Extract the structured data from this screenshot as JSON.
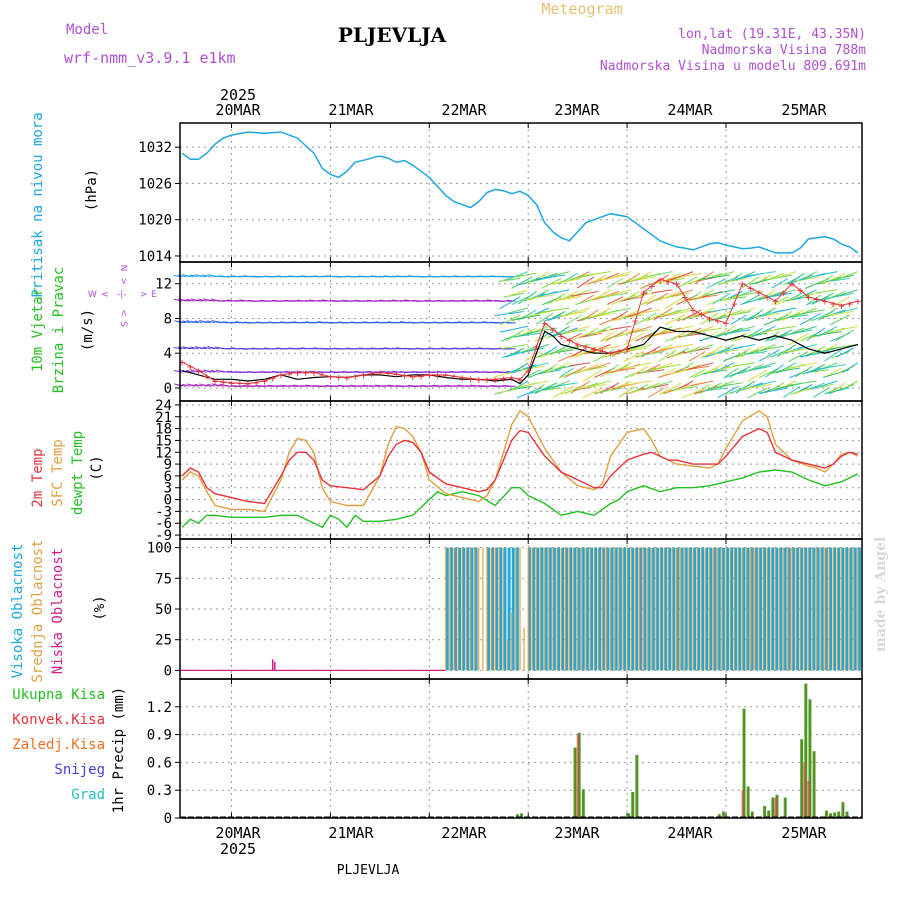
{
  "header": {
    "model_label": "Model",
    "model_name": "wrf-nmm_v3.9.1 e1km",
    "location": "PLJEVLJA",
    "product": "Meteogram",
    "coords": "lon,lat (19.31E, 43.35N)",
    "altitude": "Nadmorska Visina 788m",
    "model_altitude": "Nadmorska Visina u modelu 809.691m",
    "footer_location": "PLJEVLJA",
    "credit": "made by Angel"
  },
  "colors": {
    "pressure": "#1ca7e0",
    "temp2m": "#e8333a",
    "sfc": "#e0a040",
    "dewpt": "#22c020",
    "high_cloud": "#1ca7e0",
    "mid_cloud": "#e0a040",
    "low_cloud": "#d0208a",
    "total_precip": "#22c020",
    "conv_precip": "#e8333a",
    "frozen": "#f07020",
    "snow": "#4040e0",
    "hail": "#20c0c0",
    "title_purple": "#b050d0",
    "title_gold": "#e8c070"
  },
  "chart_data": [
    {
      "type": "line",
      "panel": "pressure",
      "ylabel": [
        "Pritisak na nivou mora",
        "(hPa)"
      ],
      "yticks": [
        1014,
        1020,
        1026,
        1032
      ],
      "ylim": [
        1013,
        1036
      ],
      "grid": true,
      "x_unit": "hours from 2025-03-20 00 UTC",
      "x_top_labels": [
        "20MAR",
        "21MAR",
        "22MAR",
        "23MAR",
        "24MAR",
        "25MAR"
      ],
      "x_top_year": "2025",
      "series": [
        {
          "color_key": "pressure",
          "x": [
            -12,
            -10,
            -8,
            -6,
            -4,
            -2,
            0,
            4,
            8,
            12,
            16,
            20,
            22,
            24,
            26,
            28,
            30,
            33,
            35,
            36,
            38,
            40,
            42,
            44,
            46,
            48,
            52,
            54,
            56,
            58,
            60,
            62,
            64,
            66,
            68,
            70,
            72,
            74,
            76,
            78,
            80,
            82,
            84,
            86,
            88,
            90,
            92,
            96,
            100,
            104,
            106,
            108,
            110,
            112,
            114,
            116,
            118,
            120,
            122,
            124,
            126,
            128,
            130,
            132,
            134,
            136,
            138,
            140,
            142,
            144,
            146,
            148,
            150,
            152
          ],
          "y": [
            1031,
            1030,
            1030,
            1031,
            1032.5,
            1033.5,
            1034,
            1034.5,
            1034.3,
            1034.5,
            1033.5,
            1031,
            1028.5,
            1027.5,
            1027,
            1028,
            1029.5,
            1030,
            1030.4,
            1030.5,
            1030.2,
            1029.5,
            1029.8,
            1029,
            1028,
            1027,
            1024,
            1023,
            1022.5,
            1022,
            1023,
            1024.5,
            1025,
            1024.8,
            1024.3,
            1024.7,
            1024,
            1022.5,
            1019.5,
            1018,
            1017,
            1016.5,
            1018,
            1019.5,
            1020,
            1020.5,
            1021,
            1020.5,
            1018.5,
            1016.5,
            1016,
            1015.5,
            1015.3,
            1015,
            1015.5,
            1016,
            1016.2,
            1015.8,
            1015.5,
            1015.2,
            1015.3,
            1015.5,
            1015,
            1014.5,
            1014.5,
            1014.5,
            1015.3,
            1016.8,
            1017,
            1017.2,
            1016.8,
            1016,
            1015.5,
            1014.5
          ]
        }
      ]
    },
    {
      "type": "line",
      "panel": "wind",
      "ylabel": [
        "10m Vjetar",
        "Brzina i Pravac",
        "(m/s)"
      ],
      "yticks": [
        0,
        4,
        8,
        12
      ],
      "ylim": [
        -1.5,
        14.5
      ],
      "grid": true,
      "compass": "N, S, W, E",
      "series": [
        {
          "name": "speed",
          "color": "#000000",
          "x": [
            -12,
            -8,
            -4,
            0,
            4,
            8,
            12,
            16,
            20,
            24,
            28,
            32,
            36,
            40,
            44,
            48,
            52,
            56,
            60,
            64,
            68,
            70,
            72,
            76,
            78,
            80,
            84,
            88,
            92,
            96,
            100,
            104,
            108,
            112,
            116,
            120,
            124,
            128,
            132,
            136,
            140,
            144,
            148,
            152
          ],
          "y": [
            2,
            1.5,
            1,
            1,
            0.8,
            1,
            1.5,
            1,
            1.2,
            1.3,
            1.2,
            1.5,
            1.5,
            1.3,
            1.5,
            1.5,
            1.2,
            1.0,
            1.0,
            0.8,
            1.0,
            0.5,
            1.5,
            6.5,
            6.0,
            5.0,
            4.5,
            4.0,
            4.0,
            4.5,
            5.0,
            7.0,
            6.5,
            6.5,
            6.0,
            5.5,
            6.0,
            5.5,
            6.0,
            5.5,
            4.5,
            4.0,
            4.5,
            5.0
          ]
        },
        {
          "name": "gust",
          "color": "#e8333a",
          "x": [
            -12,
            -8,
            -4,
            0,
            4,
            8,
            12,
            16,
            20,
            24,
            28,
            32,
            36,
            40,
            44,
            48,
            52,
            56,
            60,
            64,
            68,
            70,
            72,
            76,
            80,
            84,
            88,
            92,
            96,
            100,
            104,
            108,
            112,
            116,
            120,
            124,
            128,
            132,
            136,
            140,
            144,
            148,
            152
          ],
          "y": [
            3,
            2,
            0.8,
            0.6,
            0.5,
            0.8,
            1.5,
            1.8,
            1.8,
            1.3,
            1.2,
            1.5,
            1.8,
            1.6,
            1.3,
            1.5,
            1.5,
            1.2,
            1.0,
            1.0,
            1.2,
            1.0,
            2.0,
            7.5,
            6.0,
            5.0,
            4.5,
            4.0,
            4.5,
            11.0,
            12.5,
            12.0,
            9.0,
            8.0,
            7.5,
            12.0,
            11.0,
            10.0,
            12.0,
            10.5,
            10.0,
            9.5,
            10.0
          ]
        }
      ]
    },
    {
      "type": "line",
      "panel": "temperature",
      "ylabel": [
        "2m Temp",
        "SFC Temp",
        "dewpt Temp",
        "(C)"
      ],
      "yticks": [
        -9,
        -6,
        -3,
        0,
        3,
        6,
        9,
        12,
        15,
        18,
        21,
        24
      ],
      "ylim": [
        -10,
        25
      ],
      "grid": true,
      "series": [
        {
          "name": "2m Temp",
          "color_key": "temp2m",
          "x": [
            -12,
            -10,
            -8,
            -6,
            -4,
            0,
            4,
            8,
            12,
            14,
            16,
            18,
            20,
            22,
            24,
            28,
            32,
            36,
            38,
            40,
            42,
            44,
            46,
            48,
            52,
            56,
            60,
            62,
            64,
            66,
            68,
            70,
            72,
            76,
            80,
            84,
            86,
            88,
            90,
            92,
            96,
            100,
            102,
            104,
            106,
            108,
            112,
            116,
            118,
            120,
            124,
            128,
            130,
            132,
            136,
            140,
            142,
            144,
            146,
            148,
            150,
            152
          ],
          "y": [
            6,
            8,
            7,
            3,
            1.5,
            0.5,
            -0.5,
            -1,
            6,
            10,
            12,
            12,
            10,
            5,
            3.5,
            3.0,
            2.5,
            6,
            11,
            14,
            15,
            14.5,
            12,
            7,
            4,
            3,
            2,
            2.5,
            5,
            10,
            15,
            17.5,
            17,
            11,
            7,
            5,
            4,
            3,
            3,
            6,
            10,
            11.5,
            12,
            11,
            10,
            10,
            9,
            9,
            9,
            11,
            16,
            18,
            17,
            12,
            10,
            9,
            8.5,
            8,
            9,
            11,
            12,
            11.5
          ]
        },
        {
          "name": "SFC Temp",
          "color_key": "sfc",
          "x": [
            -12,
            -10,
            -8,
            -6,
            -4,
            0,
            4,
            8,
            12,
            14,
            16,
            18,
            20,
            22,
            24,
            28,
            32,
            36,
            38,
            40,
            42,
            44,
            46,
            48,
            52,
            56,
            60,
            62,
            64,
            66,
            68,
            70,
            72,
            76,
            80,
            84,
            86,
            88,
            90,
            92,
            96,
            100,
            102,
            104,
            106,
            108,
            112,
            116,
            118,
            120,
            124,
            128,
            130,
            132,
            136,
            140,
            142,
            144,
            146,
            148,
            150,
            152
          ],
          "y": [
            5,
            7,
            6,
            2,
            -1.5,
            -2.5,
            -2.5,
            -3,
            5,
            12,
            15.5,
            15,
            12,
            3,
            -0.5,
            -1.5,
            -1.5,
            6,
            14,
            18.5,
            18,
            16,
            12,
            5,
            1.5,
            0.5,
            -0.5,
            1,
            5,
            12,
            19,
            22.5,
            21,
            13,
            7,
            3.5,
            3,
            2.5,
            4,
            11,
            17,
            18,
            15,
            11,
            10,
            9,
            8.5,
            8,
            9,
            13,
            20,
            22.5,
            21,
            14,
            10,
            8.5,
            8,
            7,
            9,
            11.5,
            12,
            11
          ]
        },
        {
          "name": "dewpt Temp",
          "color_key": "dewpt",
          "x": [
            -12,
            -10,
            -8,
            -6,
            -4,
            0,
            4,
            8,
            12,
            16,
            20,
            22,
            24,
            26,
            28,
            30,
            32,
            36,
            40,
            44,
            48,
            50,
            52,
            56,
            60,
            64,
            68,
            70,
            72,
            76,
            80,
            84,
            88,
            92,
            94,
            96,
            100,
            104,
            108,
            112,
            116,
            120,
            124,
            128,
            132,
            136,
            140,
            144,
            148,
            152
          ],
          "y": [
            -7,
            -5,
            -6,
            -4,
            -4,
            -4.5,
            -4.5,
            -4.5,
            -4,
            -4,
            -6,
            -7,
            -4,
            -5,
            -7,
            -4,
            -5.5,
            -5.5,
            -5,
            -4,
            0,
            2,
            1,
            2,
            1,
            -1.5,
            3,
            3,
            1,
            -1,
            -4,
            -3,
            -4,
            -1,
            0,
            2,
            3.5,
            2,
            3,
            3,
            3.5,
            4.5,
            5.5,
            7,
            7.5,
            7,
            5,
            3.5,
            4.5,
            6.5
          ]
        }
      ]
    },
    {
      "type": "bar",
      "panel": "cloud",
      "ylabel": [
        "Visoka Oblacnost",
        "Srednja Oblacnost",
        "Niska Oblacnost",
        "(%)"
      ],
      "yticks": [
        0,
        25,
        50,
        75,
        100
      ],
      "ylim": [
        -7,
        107
      ],
      "grid": true,
      "cloud_start_hour": 52,
      "series": [
        {
          "name": "Visoka Oblacnost",
          "color_key": "high_cloud",
          "note": "100% hourly from 52h to end, with clear gaps near 60h and 70h"
        },
        {
          "name": "Srednja Oblacnost",
          "color_key": "mid_cloud",
          "note": "bars 100% from 52h onward with dips to ~25-48% near 67-72h"
        },
        {
          "name": "Niska Oblacnost",
          "color_key": "low_cloud",
          "x": [
            10,
            10.5
          ],
          "y": [
            9,
            7
          ]
        }
      ]
    },
    {
      "type": "bar",
      "panel": "precip",
      "ylabel": [
        "1hr Precip (mm)"
      ],
      "legend": [
        "Ukupna Kisa",
        "Konvek.Kisa",
        "Zaledj.Kisa",
        "Snijeg",
        "Grad"
      ],
      "yticks": [
        0,
        0.3,
        0.6,
        0.9,
        1.2
      ],
      "ylim": [
        0,
        1.5
      ],
      "grid": true,
      "x_bottom_labels": [
        "20MAR",
        "21MAR",
        "22MAR",
        "23MAR",
        "24MAR",
        "25MAR"
      ],
      "x_bottom_year": "2025",
      "series": [
        {
          "name": "Ukupna Kisa",
          "color_key": "total_precip",
          "x": [
            69,
            70,
            83,
            84,
            85,
            96,
            97,
            98,
            118,
            119,
            124,
            125,
            126,
            129,
            130,
            131,
            132,
            134,
            138,
            139,
            140,
            141,
            144,
            145,
            146,
            147,
            148,
            149
          ],
          "y": [
            0.04,
            0.05,
            0.76,
            0.92,
            0.31,
            0.05,
            0.28,
            0.68,
            0.04,
            0.07,
            1.18,
            0.34,
            0.07,
            0.13,
            0.08,
            0.22,
            0.25,
            0.22,
            0.85,
            1.45,
            1.28,
            0.72,
            0.08,
            0.05,
            0.06,
            0.07,
            0.17,
            0.07
          ]
        },
        {
          "name": "Konvek.Kisa",
          "color_key": "conv_precip",
          "x": [
            84,
            124,
            132,
            139,
            140
          ],
          "y": [
            0.9,
            0.3,
            0.22,
            0.6,
            0.4
          ]
        }
      ]
    }
  ]
}
